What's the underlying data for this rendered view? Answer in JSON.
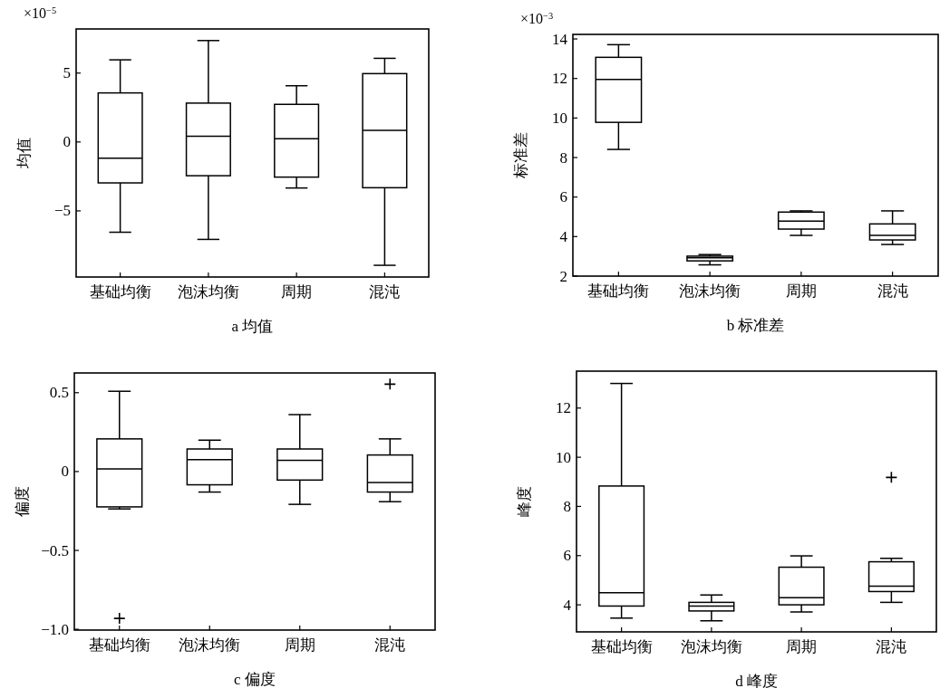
{
  "chart_data": [
    {
      "type": "box",
      "title": "a 均值",
      "ylabel": "均值",
      "annotations": [
        "×10$^{−5}$"
      ],
      "categories": [
        "基础均衡",
        "泡沫均衡",
        "周期",
        "混沌"
      ],
      "ylim": [
        -9.8,
        8.2
      ],
      "yticks": [
        {
          "value": 5,
          "label": "5"
        },
        {
          "value": 0,
          "label": "0"
        },
        {
          "value": -5,
          "label": "−5"
        }
      ],
      "grid": false,
      "boxes": [
        {
          "low": -6.55,
          "q1": -2.97,
          "median": -1.18,
          "q3": 3.56,
          "high": 5.96
        },
        {
          "low": -7.07,
          "q1": -2.45,
          "median": 0.41,
          "q3": 2.82,
          "high": 7.36
        },
        {
          "low": -3.34,
          "q1": -2.55,
          "median": 0.24,
          "q3": 2.73,
          "high": 4.08
        },
        {
          "low": -8.95,
          "q1": -3.32,
          "median": 0.85,
          "q3": 4.96,
          "high": 6.07
        }
      ]
    },
    {
      "type": "box",
      "title": "b 标准差",
      "ylabel": "标准差",
      "annotations": [
        "×10$^{−3}$"
      ],
      "categories": [
        "基础均衡",
        "泡沫均衡",
        "周期",
        "混沌"
      ],
      "ylim": [
        2,
        14.23
      ],
      "yticks": [
        2,
        4,
        6,
        8,
        10,
        12,
        14
      ],
      "grid": false,
      "boxes": [
        {
          "low": 8.41,
          "q1": 9.78,
          "median": 11.95,
          "q3": 13.07,
          "high": 13.71
        },
        {
          "low": 2.57,
          "q1": 2.77,
          "median": 2.93,
          "q3": 3.01,
          "high": 3.09
        },
        {
          "low": 4.06,
          "q1": 4.38,
          "median": 4.78,
          "q3": 5.24,
          "high": 5.3
        },
        {
          "low": 3.6,
          "q1": 3.83,
          "median": 4.06,
          "q3": 4.64,
          "high": 5.3
        }
      ]
    },
    {
      "type": "box",
      "title": "c 偏度",
      "ylabel": "偏度",
      "categories": [
        "基础均衡",
        "泡沫均衡",
        "周期",
        "混沌"
      ],
      "ylim": [
        -1.005,
        0.625
      ],
      "yticks": [
        {
          "value": 0.5,
          "label": "0.5"
        },
        {
          "value": 0,
          "label": "0"
        },
        {
          "value": -0.5,
          "label": "−0.5"
        },
        {
          "value": -1.0,
          "label": "−1.0"
        }
      ],
      "grid": false,
      "marker": "cross",
      "boxes": [
        {
          "low": -0.237,
          "q1": -0.224,
          "median": 0.017,
          "q3": 0.207,
          "high": 0.509,
          "outliers": [
            -0.931
          ]
        },
        {
          "low": -0.13,
          "q1": -0.084,
          "median": 0.076,
          "q3": 0.143,
          "high": 0.199
        },
        {
          "low": -0.208,
          "q1": -0.054,
          "median": 0.071,
          "q3": 0.143,
          "high": 0.361
        },
        {
          "low": -0.191,
          "q1": -0.13,
          "median": -0.069,
          "q3": 0.105,
          "high": 0.207,
          "outliers": [
            0.554
          ]
        }
      ]
    },
    {
      "type": "box",
      "title": "d 峰度",
      "ylabel": "峰度",
      "categories": [
        "基础均衡",
        "泡沫均衡",
        "周期",
        "混沌"
      ],
      "ylim": [
        2.9,
        13.5
      ],
      "yticks": [
        4,
        6,
        8,
        10,
        12
      ],
      "grid": false,
      "marker": "cross",
      "boxes": [
        {
          "low": 3.46,
          "q1": 3.95,
          "median": 4.49,
          "q3": 8.83,
          "high": 13.0
        },
        {
          "low": 3.35,
          "q1": 3.75,
          "median": 3.95,
          "q3": 4.1,
          "high": 4.4
        },
        {
          "low": 3.71,
          "q1": 4.0,
          "median": 4.29,
          "q3": 5.53,
          "high": 5.99
        },
        {
          "low": 4.1,
          "q1": 4.54,
          "median": 4.76,
          "q3": 5.75,
          "high": 5.89,
          "outliers": [
            9.18
          ]
        }
      ]
    }
  ]
}
